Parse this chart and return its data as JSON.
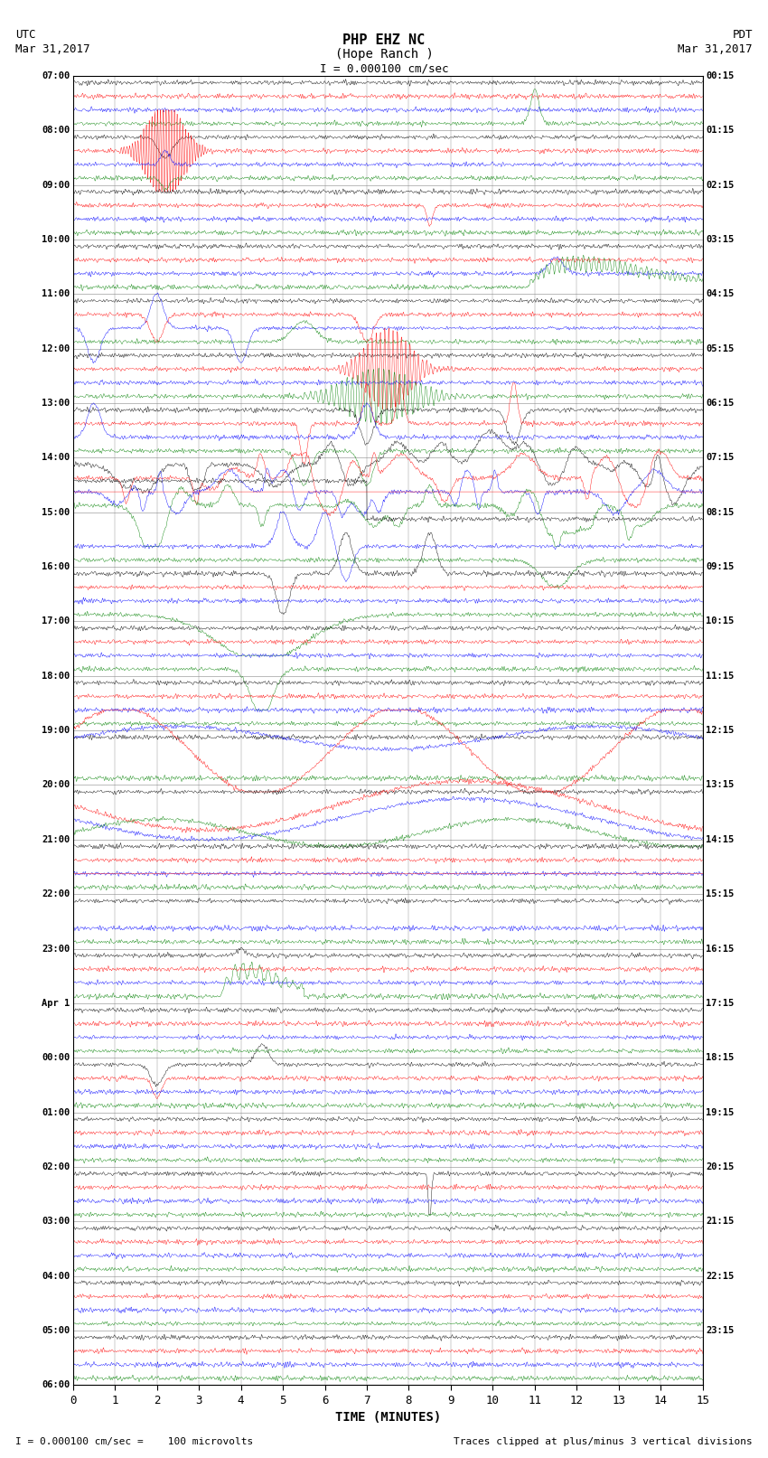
{
  "title_line1": "PHP EHZ NC",
  "title_line2": "(Hope Ranch )",
  "title_scale": "I = 0.000100 cm/sec",
  "left_header_line1": "UTC",
  "left_header_line2": "Mar 31,2017",
  "right_header_line1": "PDT",
  "right_header_line2": "Mar 31,2017",
  "xlabel": "TIME (MINUTES)",
  "footer_left": "I = 0.000100 cm/sec =    100 microvolts",
  "footer_right": "Traces clipped at plus/minus 3 vertical divisions",
  "xmin": 0,
  "xmax": 15,
  "xticks": [
    0,
    1,
    2,
    3,
    4,
    5,
    6,
    7,
    8,
    9,
    10,
    11,
    12,
    13,
    14,
    15
  ],
  "background_color": "#ffffff",
  "trace_colors": [
    "black",
    "red",
    "blue",
    "green"
  ],
  "left_times_utc": [
    "07:00",
    "08:00",
    "09:00",
    "10:00",
    "11:00",
    "12:00",
    "13:00",
    "14:00",
    "15:00",
    "16:00",
    "17:00",
    "18:00",
    "19:00",
    "20:00",
    "21:00",
    "22:00",
    "23:00",
    "Apr 1",
    "00:00",
    "01:00",
    "02:00",
    "03:00",
    "04:00",
    "05:00",
    "06:00"
  ],
  "right_times_pdt": [
    "00:15",
    "01:15",
    "02:15",
    "03:15",
    "04:15",
    "05:15",
    "06:15",
    "07:15",
    "08:15",
    "09:15",
    "10:15",
    "11:15",
    "12:15",
    "13:15",
    "14:15",
    "15:15",
    "16:15",
    "17:15",
    "18:15",
    "19:15",
    "20:15",
    "21:15",
    "22:15",
    "23:15"
  ],
  "n_rows": 24,
  "n_traces_per_row": 4,
  "figsize": [
    8.5,
    16.13
  ],
  "dpi": 100,
  "noise_amplitude": 0.25,
  "trace_linewidth": 0.3,
  "grid_color": "#888888",
  "grid_linewidth": 0.3
}
